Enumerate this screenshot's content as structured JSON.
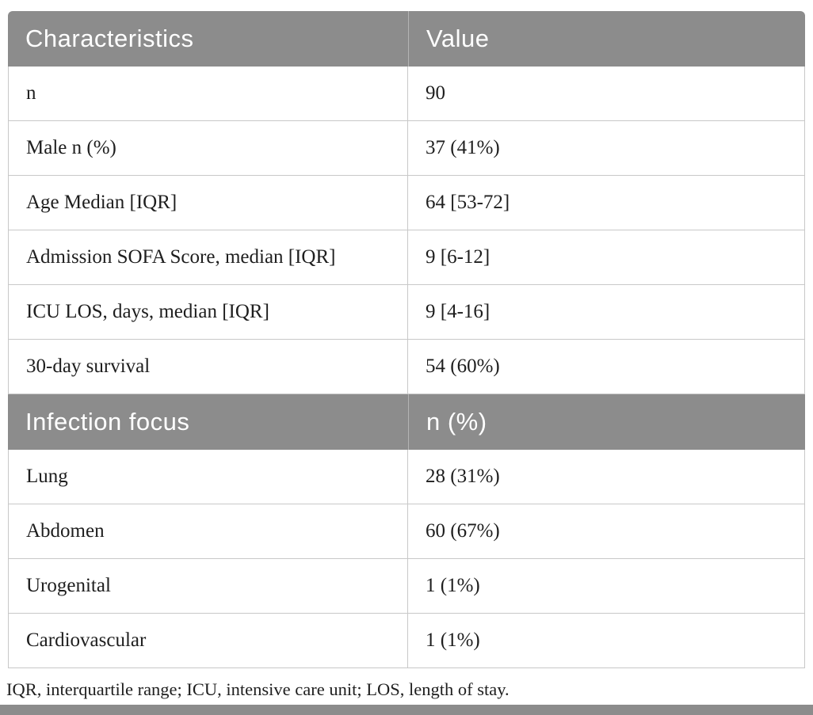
{
  "table": {
    "sections": [
      {
        "header": {
          "col1": "Characteristics",
          "col2": "Value"
        },
        "rows": [
          {
            "label": "n",
            "value": "90"
          },
          {
            "label": "Male n (%)",
            "value": "37 (41%)"
          },
          {
            "label": "Age Median [IQR]",
            "value": "64 [53-72]"
          },
          {
            "label": "Admission SOFA Score, median [IQR]",
            "value": "9 [6-12]"
          },
          {
            "label": "ICU LOS, days, median [IQR]",
            "value": "9 [4-16]"
          },
          {
            "label": "30-day survival",
            "value": "54 (60%)"
          }
        ]
      },
      {
        "header": {
          "col1": "Infection focus",
          "col2": "n (%)"
        },
        "rows": [
          {
            "label": "Lung",
            "value": "28 (31%)"
          },
          {
            "label": "Abdomen",
            "value": "60 (67%)"
          },
          {
            "label": "Urogenital",
            "value": "1 (1%)"
          },
          {
            "label": "Cardiovascular",
            "value": "1 (1%)"
          }
        ]
      }
    ],
    "footnote": "IQR, interquartile range; ICU, intensive care unit; LOS, length of stay."
  },
  "colors": {
    "header_bg": "#8c8c8c",
    "header_text": "#ffffff",
    "body_text": "#1e1e1e",
    "row_border": "#c8c8c8"
  }
}
